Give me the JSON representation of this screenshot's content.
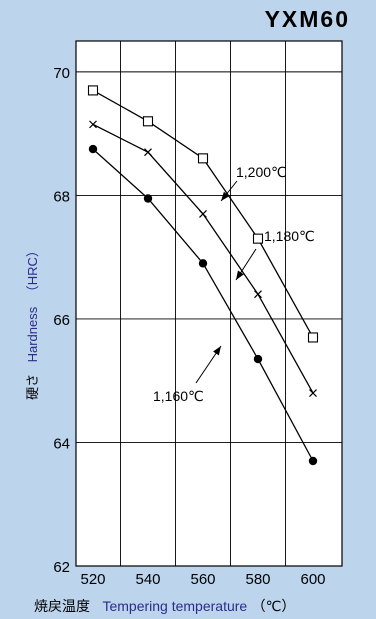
{
  "chart_data": {
    "type": "line",
    "title": "YXM60",
    "xlabel_ja": "焼戻温度",
    "xlabel_en": "Tempering temperature",
    "xlabel_unit": "（℃）",
    "ylabel_ja": "硬さ",
    "ylabel_en": "Hardness",
    "ylabel_unit": "（HRC）",
    "x": [
      520,
      540,
      560,
      580,
      600
    ],
    "x_ticks": [
      "520",
      "540",
      "560",
      "580",
      "600"
    ],
    "y_ticks": [
      "62",
      "64",
      "66",
      "68",
      "70"
    ],
    "xlim": [
      520,
      600
    ],
    "ylim": [
      62,
      70.5
    ],
    "grid": true,
    "series": [
      {
        "name": "1,200℃",
        "marker": "open-square",
        "values": [
          69.7,
          69.2,
          68.6,
          67.3,
          65.7
        ]
      },
      {
        "name": "1,180℃",
        "marker": "cross",
        "values": [
          69.15,
          68.7,
          67.7,
          66.4,
          64.8
        ]
      },
      {
        "name": "1,160℃",
        "marker": "filled-circle",
        "values": [
          68.75,
          67.95,
          66.9,
          65.35,
          63.7
        ]
      }
    ],
    "annotations": [
      "1,200℃",
      "1,180℃",
      "1,160℃"
    ]
  },
  "colors": {
    "background": "#bcd4ec",
    "plot_area": "#ffffff",
    "line": "#000000",
    "english_label": "#2c2c8c"
  }
}
